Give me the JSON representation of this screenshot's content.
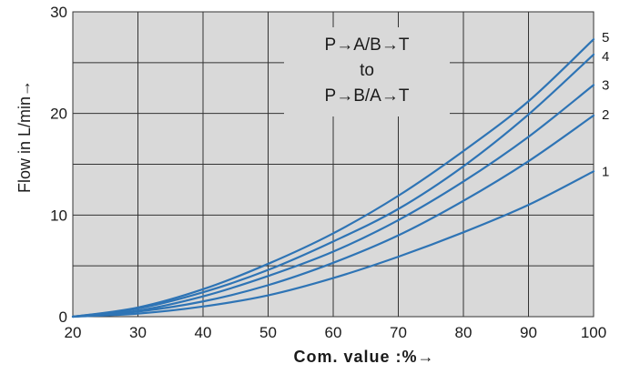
{
  "chart_data": {
    "type": "line",
    "title": "",
    "xlabel": "Com. value :%→",
    "ylabel": "Flow in L/min→",
    "xlim": [
      20,
      100
    ],
    "ylim": [
      0,
      30
    ],
    "x_ticks": [
      "20",
      "30",
      "40",
      "50",
      "60",
      "70",
      "80",
      "90",
      "100"
    ],
    "y_ticks": [
      "0",
      "10",
      "20",
      "30"
    ],
    "grid": true,
    "plot_background": "#d9d9d9",
    "line_color": "#2e74b5",
    "annotation": [
      "P→A/B→T",
      "to",
      "P→B/A→T"
    ],
    "series": [
      {
        "name": "1",
        "x": [
          20,
          30,
          40,
          50,
          60,
          70,
          80,
          90,
          100
        ],
        "y": [
          0,
          0.3,
          1.0,
          2.1,
          3.8,
          5.9,
          8.3,
          11.0,
          14.3
        ]
      },
      {
        "name": "2",
        "x": [
          20,
          30,
          40,
          50,
          60,
          70,
          80,
          90,
          100
        ],
        "y": [
          0,
          0.5,
          1.5,
          3.1,
          5.3,
          8.0,
          11.4,
          15.3,
          19.8
        ]
      },
      {
        "name": "3",
        "x": [
          20,
          30,
          40,
          50,
          60,
          70,
          80,
          90,
          100
        ],
        "y": [
          0,
          0.6,
          2.0,
          4.0,
          6.4,
          9.5,
          13.3,
          17.7,
          22.8
        ]
      },
      {
        "name": "4",
        "x": [
          20,
          30,
          40,
          50,
          60,
          70,
          80,
          90,
          100
        ],
        "y": [
          0,
          0.8,
          2.4,
          4.6,
          7.4,
          10.6,
          14.8,
          19.9,
          25.8
        ]
      },
      {
        "name": "5",
        "x": [
          20,
          30,
          40,
          50,
          60,
          70,
          80,
          90,
          100
        ],
        "y": [
          0,
          0.9,
          2.7,
          5.2,
          8.2,
          11.9,
          16.3,
          21.2,
          27.3
        ]
      }
    ]
  }
}
